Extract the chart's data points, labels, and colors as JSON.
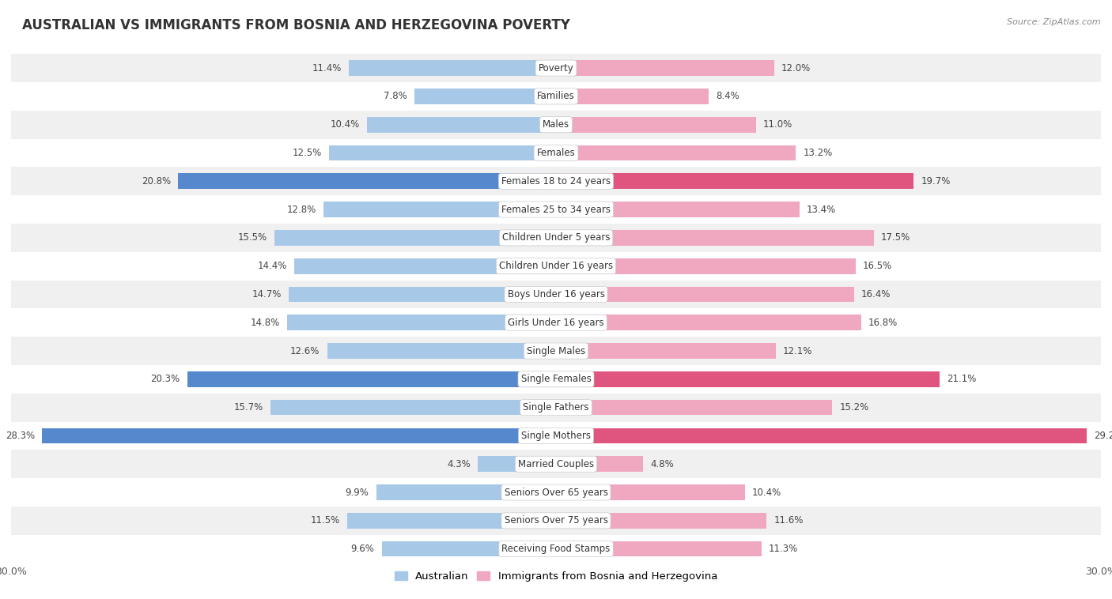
{
  "title": "AUSTRALIAN VS IMMIGRANTS FROM BOSNIA AND HERZEGOVINA POVERTY",
  "source": "Source: ZipAtlas.com",
  "categories": [
    "Poverty",
    "Families",
    "Males",
    "Females",
    "Females 18 to 24 years",
    "Females 25 to 34 years",
    "Children Under 5 years",
    "Children Under 16 years",
    "Boys Under 16 years",
    "Girls Under 16 years",
    "Single Males",
    "Single Females",
    "Single Fathers",
    "Single Mothers",
    "Married Couples",
    "Seniors Over 65 years",
    "Seniors Over 75 years",
    "Receiving Food Stamps"
  ],
  "australian": [
    11.4,
    7.8,
    10.4,
    12.5,
    20.8,
    12.8,
    15.5,
    14.4,
    14.7,
    14.8,
    12.6,
    20.3,
    15.7,
    28.3,
    4.3,
    9.9,
    11.5,
    9.6
  ],
  "immigrants": [
    12.0,
    8.4,
    11.0,
    13.2,
    19.7,
    13.4,
    17.5,
    16.5,
    16.4,
    16.8,
    12.1,
    21.1,
    15.2,
    29.2,
    4.8,
    10.4,
    11.6,
    11.3
  ],
  "australian_color": "#a8c8e8",
  "immigrant_color": "#f0a8c0",
  "highlight_australian_color": "#5588cc",
  "highlight_immigrant_color": "#e05580",
  "background_color": "#ffffff",
  "row_color_even": "#f0f0f0",
  "row_color_odd": "#ffffff",
  "highlight_rows": [
    4,
    11,
    13
  ],
  "xlim": 30.0,
  "legend_australian": "Australian",
  "legend_immigrant": "Immigrants from Bosnia and Herzegovina",
  "bar_height": 0.55,
  "label_fontsize": 8.5,
  "value_fontsize": 8.5
}
